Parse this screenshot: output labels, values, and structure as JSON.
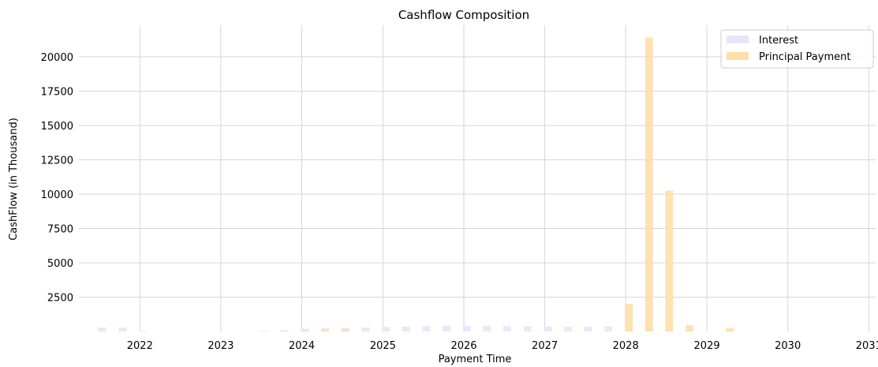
{
  "chart_data": {
    "type": "bar",
    "title": "Cashflow Composition",
    "xlabel": "Payment Time",
    "ylabel": "CashFlow (in Thousand)",
    "x_is_date": true,
    "xlim": [
      "2021-04-01",
      "2031-02-01"
    ],
    "ylim": [
      0,
      22300
    ],
    "grid": true,
    "legend_position": "top-right",
    "x_tick_labels": [
      "2022",
      "2023",
      "2024",
      "2025",
      "2026",
      "2027",
      "2028",
      "2029",
      "2030",
      "2031"
    ],
    "y_tick_labels": [
      "2500",
      "5000",
      "7500",
      "10000",
      "12500",
      "15000",
      "17500",
      "20000"
    ],
    "series": [
      {
        "name": "Interest",
        "color": "#e6e6fa",
        "points": [
          {
            "date": "2021-07-15",
            "value": 300
          },
          {
            "date": "2021-10-15",
            "value": 280
          },
          {
            "date": "2022-01-15",
            "value": 60
          },
          {
            "date": "2023-07-15",
            "value": 40
          },
          {
            "date": "2023-10-15",
            "value": 100
          },
          {
            "date": "2024-01-15",
            "value": 200
          },
          {
            "date": "2024-04-15",
            "value": 230
          },
          {
            "date": "2024-07-15",
            "value": 270
          },
          {
            "date": "2024-10-15",
            "value": 300
          },
          {
            "date": "2025-01-15",
            "value": 330
          },
          {
            "date": "2025-04-15",
            "value": 350
          },
          {
            "date": "2025-07-15",
            "value": 370
          },
          {
            "date": "2025-10-15",
            "value": 390
          },
          {
            "date": "2026-01-15",
            "value": 400
          },
          {
            "date": "2026-04-15",
            "value": 390
          },
          {
            "date": "2026-07-15",
            "value": 380
          },
          {
            "date": "2026-10-15",
            "value": 370
          },
          {
            "date": "2027-01-15",
            "value": 360
          },
          {
            "date": "2027-04-15",
            "value": 350
          },
          {
            "date": "2027-07-15",
            "value": 350
          },
          {
            "date": "2027-10-15",
            "value": 360
          },
          {
            "date": "2028-01-15",
            "value": 380
          },
          {
            "date": "2028-04-15",
            "value": 400
          },
          {
            "date": "2028-07-15",
            "value": 180
          },
          {
            "date": "2028-10-15",
            "value": 40
          },
          {
            "date": "2029-04-15",
            "value": 20
          }
        ]
      },
      {
        "name": "Principal Payment",
        "color": "#ffdfa8",
        "points": [
          {
            "date": "2023-07-15",
            "value": 20
          },
          {
            "date": "2023-10-15",
            "value": 40
          },
          {
            "date": "2024-01-15",
            "value": 70
          },
          {
            "date": "2024-04-15",
            "value": 180
          },
          {
            "date": "2024-07-15",
            "value": 200
          },
          {
            "date": "2028-01-15",
            "value": 2000
          },
          {
            "date": "2028-04-15",
            "value": 21400
          },
          {
            "date": "2028-07-15",
            "value": 10250
          },
          {
            "date": "2028-10-15",
            "value": 450
          },
          {
            "date": "2029-04-15",
            "value": 250
          }
        ]
      }
    ]
  }
}
